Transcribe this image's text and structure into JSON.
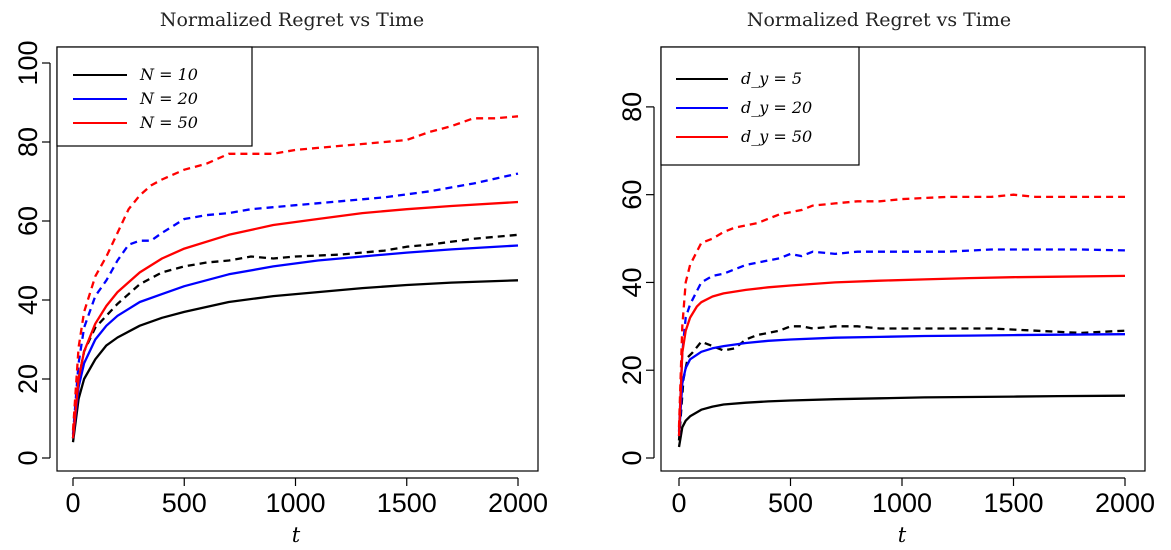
{
  "chart_data": [
    {
      "type": "line",
      "title": "Normalized Regret vs Time",
      "xlabel": "t",
      "ylabel": "",
      "xlim": [
        0,
        2000
      ],
      "ylim": [
        0,
        100
      ],
      "xticks": [
        0,
        500,
        1000,
        1500,
        2000
      ],
      "yticks": [
        0,
        20,
        40,
        60,
        80,
        100
      ],
      "xtick_labels": [
        "0",
        "500",
        "1000",
        "1500",
        "2000"
      ],
      "ytick_labels": [
        "0",
        "20",
        "40",
        "60",
        "80",
        "100"
      ],
      "grid": false,
      "legend_position": "top-left",
      "legend": [
        {
          "label": "N = 10",
          "color": "#000000"
        },
        {
          "label": "N = 20",
          "color": "#0000ff"
        },
        {
          "label": "N = 50",
          "color": "#ff0000"
        }
      ],
      "series": [
        {
          "name": "N = 10",
          "style": "solid",
          "color": "#000000",
          "x": [
            0,
            25,
            50,
            100,
            150,
            200,
            300,
            400,
            500,
            700,
            900,
            1100,
            1300,
            1500,
            1700,
            2000
          ],
          "y": [
            4,
            15,
            20,
            25,
            28.5,
            30.5,
            33.5,
            35.5,
            37,
            39.5,
            41,
            42,
            43,
            43.8,
            44.4,
            45
          ]
        },
        {
          "name": "N = 10",
          "style": "dashed",
          "color": "#000000",
          "x": [
            0,
            25,
            50,
            100,
            200,
            300,
            400,
            500,
            600,
            700,
            800,
            900,
            1000,
            1200,
            1400,
            1500,
            1600,
            1800,
            2000
          ],
          "y": [
            5,
            20,
            27,
            33,
            39,
            44,
            47,
            48.5,
            49.5,
            50,
            51,
            50.5,
            51,
            51.5,
            52.5,
            53.5,
            54,
            55.5,
            56.5
          ]
        },
        {
          "name": "N = 20",
          "style": "solid",
          "color": "#0000ff",
          "x": [
            0,
            25,
            50,
            100,
            150,
            200,
            300,
            400,
            500,
            700,
            900,
            1100,
            1300,
            1500,
            1700,
            2000
          ],
          "y": [
            5,
            18,
            24,
            30,
            33.5,
            36,
            39.5,
            41.5,
            43.5,
            46.5,
            48.5,
            50,
            51,
            52,
            52.8,
            53.8
          ]
        },
        {
          "name": "N = 20",
          "style": "dashed",
          "color": "#0000ff",
          "x": [
            0,
            25,
            50,
            100,
            150,
            200,
            250,
            300,
            350,
            400,
            500,
            600,
            700,
            800,
            900,
            1000,
            1200,
            1400,
            1600,
            1800,
            2000
          ],
          "y": [
            6,
            24,
            33,
            41,
            45,
            50,
            54,
            55,
            55,
            57,
            60.5,
            61.5,
            62,
            63,
            63.5,
            64,
            65,
            66,
            67.5,
            69.5,
            72
          ]
        },
        {
          "name": "N = 50",
          "style": "solid",
          "color": "#ff0000",
          "x": [
            0,
            25,
            50,
            100,
            150,
            200,
            300,
            400,
            500,
            700,
            900,
            1100,
            1300,
            1500,
            1700,
            2000
          ],
          "y": [
            5,
            20,
            27,
            34,
            38.5,
            42,
            47,
            50.5,
            53,
            56.5,
            59,
            60.5,
            62,
            63,
            63.8,
            64.8
          ]
        },
        {
          "name": "N = 50",
          "style": "dashed",
          "color": "#ff0000",
          "x": [
            0,
            25,
            50,
            100,
            150,
            200,
            250,
            300,
            350,
            400,
            500,
            600,
            700,
            800,
            900,
            1000,
            1100,
            1200,
            1300,
            1400,
            1500,
            1600,
            1700,
            1800,
            1900,
            2000
          ],
          "y": [
            7,
            28,
            37,
            46,
            51,
            57,
            63,
            66.5,
            69,
            70.5,
            73,
            74.5,
            77,
            77,
            77,
            78,
            78.5,
            79,
            79.5,
            80,
            80.5,
            82.5,
            84,
            86,
            86,
            86.5
          ]
        }
      ]
    },
    {
      "type": "line",
      "title": "Normalized Regret vs Time",
      "xlabel": "t",
      "ylabel": "",
      "xlim": [
        0,
        2000
      ],
      "ylim": [
        0,
        90
      ],
      "xticks": [
        0,
        500,
        1000,
        1500,
        2000
      ],
      "yticks": [
        0,
        20,
        40,
        60,
        80
      ],
      "xtick_labels": [
        "0",
        "500",
        "1000",
        "1500",
        "2000"
      ],
      "ytick_labels": [
        "0",
        "20",
        "40",
        "60",
        "80"
      ],
      "grid": false,
      "legend_position": "top-left",
      "legend": [
        {
          "label": "d_y = 5",
          "color": "#000000"
        },
        {
          "label": "d_y = 20",
          "color": "#0000ff"
        },
        {
          "label": "d_y = 50",
          "color": "#ff0000"
        }
      ],
      "series": [
        {
          "name": "d_y = 5",
          "style": "solid",
          "color": "#000000",
          "x": [
            0,
            15,
            30,
            50,
            100,
            150,
            200,
            300,
            400,
            500,
            700,
            900,
            1100,
            1300,
            1500,
            1700,
            2000
          ],
          "y": [
            2.5,
            7,
            8.5,
            9.5,
            11,
            11.7,
            12.2,
            12.6,
            12.9,
            13.1,
            13.4,
            13.6,
            13.8,
            13.9,
            14,
            14.1,
            14.2
          ]
        },
        {
          "name": "d_y = 5",
          "style": "dashed",
          "color": "#000000",
          "x": [
            0,
            20,
            40,
            60,
            100,
            150,
            200,
            250,
            300,
            350,
            400,
            450,
            500,
            550,
            600,
            700,
            800,
            900,
            1000,
            1200,
            1400,
            1600,
            1800,
            2000
          ],
          "y": [
            4,
            18,
            23,
            24,
            26.5,
            25.5,
            24.5,
            25,
            27,
            28,
            28.5,
            29,
            30,
            30,
            29.5,
            30,
            30,
            29.5,
            29.5,
            29.5,
            29.5,
            29,
            28.5,
            29
          ]
        },
        {
          "name": "d_y = 20",
          "style": "solid",
          "color": "#0000ff",
          "x": [
            0,
            15,
            30,
            50,
            100,
            150,
            200,
            300,
            400,
            500,
            700,
            900,
            1100,
            1300,
            1500,
            1700,
            2000
          ],
          "y": [
            5,
            17,
            20.5,
            22.5,
            24.2,
            25,
            25.5,
            26.2,
            26.7,
            27,
            27.4,
            27.6,
            27.8,
            27.9,
            28,
            28.1,
            28.2
          ]
        },
        {
          "name": "d_y = 20",
          "style": "dashed",
          "color": "#0000ff",
          "x": [
            0,
            15,
            30,
            50,
            80,
            100,
            150,
            200,
            250,
            300,
            350,
            400,
            450,
            500,
            550,
            600,
            700,
            800,
            900,
            1000,
            1200,
            1400,
            1500,
            1600,
            1800,
            2000
          ],
          "y": [
            6,
            24,
            32,
            35,
            38,
            40,
            41.5,
            42,
            43,
            44,
            44.5,
            45,
            45.5,
            46.5,
            46,
            47,
            46.5,
            47,
            47,
            47,
            47,
            47.5,
            47.5,
            47.5,
            47.5,
            47.3
          ]
        },
        {
          "name": "d_y = 50",
          "style": "solid",
          "color": "#ff0000",
          "x": [
            0,
            15,
            30,
            50,
            80,
            100,
            150,
            200,
            300,
            400,
            500,
            700,
            900,
            1100,
            1300,
            1500,
            1700,
            2000
          ],
          "y": [
            5,
            24,
            29,
            32,
            34.5,
            35.5,
            36.8,
            37.5,
            38.3,
            38.9,
            39.3,
            40,
            40.4,
            40.7,
            41,
            41.2,
            41.3,
            41.5
          ]
        },
        {
          "name": "d_y = 50",
          "style": "dashed",
          "color": "#ff0000",
          "x": [
            0,
            15,
            30,
            50,
            80,
            100,
            150,
            200,
            250,
            300,
            350,
            400,
            450,
            500,
            550,
            600,
            700,
            800,
            900,
            1000,
            1200,
            1400,
            1500,
            1600,
            1800,
            2000
          ],
          "y": [
            7,
            30,
            40,
            44,
            47,
            49,
            50,
            51.5,
            52.5,
            53,
            53.5,
            54.5,
            55.5,
            56,
            56.5,
            57.5,
            58,
            58.5,
            58.5,
            59,
            59.5,
            59.5,
            60,
            59.5,
            59.5,
            59.5
          ]
        }
      ]
    }
  ]
}
